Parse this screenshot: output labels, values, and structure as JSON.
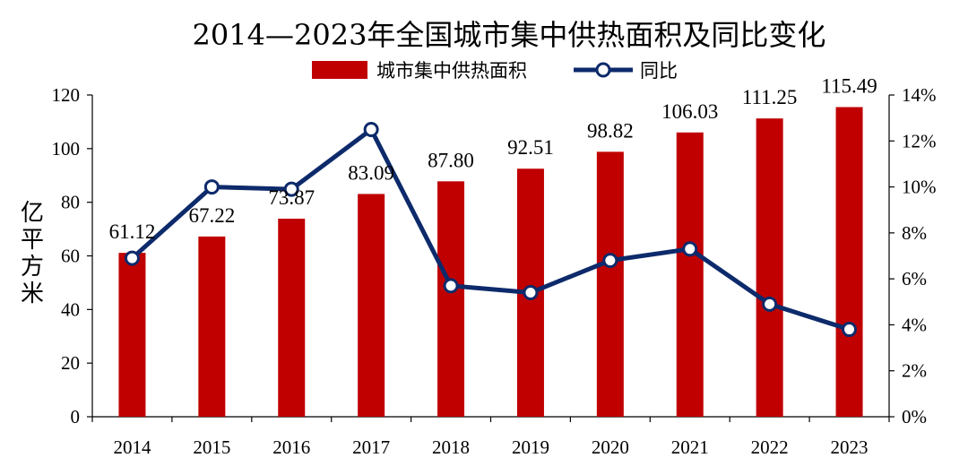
{
  "chart_data": {
    "type": "bar",
    "title": "2014—2023年全国城市集中供热面积及同比变化",
    "categories": [
      "2014",
      "2015",
      "2016",
      "2017",
      "2018",
      "2019",
      "2020",
      "2021",
      "2022",
      "2023"
    ],
    "series": [
      {
        "name": "城市集中供热面积",
        "type": "bar",
        "axis": "left",
        "color": "#c00000",
        "values": [
          61.12,
          67.22,
          73.87,
          83.09,
          87.8,
          92.51,
          98.82,
          106.03,
          111.25,
          115.49
        ],
        "labels": [
          "61.12",
          "67.22",
          "73.87",
          "83.09",
          "87.80",
          "92.51",
          "98.82",
          "106.03",
          "111.25",
          "115.49"
        ]
      },
      {
        "name": "同比",
        "type": "line",
        "axis": "right",
        "color": "#0d2a6b",
        "values": [
          6.9,
          10.0,
          9.9,
          12.5,
          5.7,
          5.4,
          6.8,
          7.3,
          4.9,
          3.8
        ]
      }
    ],
    "ylabel": "亿平方米",
    "ylim": [
      0,
      120
    ],
    "yticks": [
      "0",
      "20",
      "40",
      "60",
      "80",
      "100",
      "120"
    ],
    "y2lim": [
      0,
      14
    ],
    "y2ticks": [
      "0%",
      "2%",
      "4%",
      "6%",
      "8%",
      "10%",
      "12%",
      "14%"
    ],
    "grid": false,
    "legend_position": "top-center"
  }
}
